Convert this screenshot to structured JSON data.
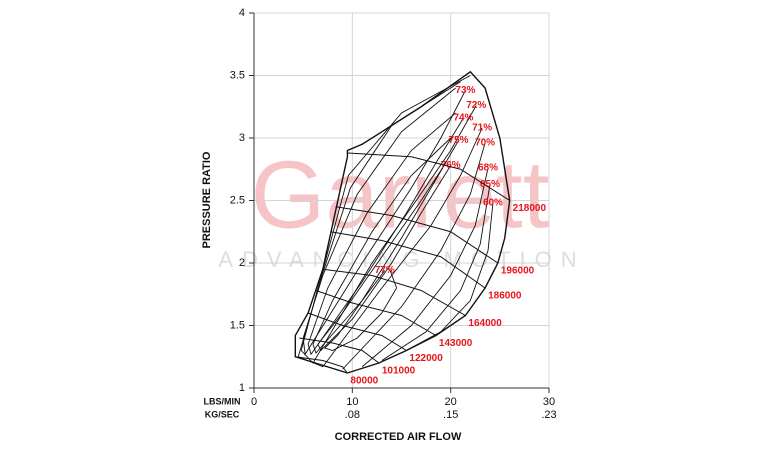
{
  "chart_data": {
    "type": "compressor_map",
    "watermark": {
      "title": "Garrett",
      "subtitle": "ADVANCING MOTION"
    },
    "ylabel": "PRESSURE RATIO",
    "xlabel": "CORRECTED AIR FLOW",
    "xunit": "LBS/MIN",
    "x2unit": "KG/SEC",
    "xlim": [
      0,
      30
    ],
    "xticks": [
      0,
      10,
      20,
      30
    ],
    "x2lim": [
      0,
      0.2268
    ],
    "x2ticks": [
      {
        "value": 0.0756,
        "label": ".08"
      },
      {
        "value": 0.1512,
        "label": ".15"
      },
      {
        "value": 0.2268,
        "label": ".23"
      }
    ],
    "ylim": [
      1,
      4
    ],
    "yticks": [
      1,
      1.5,
      2,
      2.5,
      3,
      3.5,
      4
    ],
    "grid": true,
    "line_color": "#111111",
    "label_color": "#e8141b",
    "outline": [
      {
        "x": [
          9.5,
          4.2,
          4.2,
          5.5,
          7,
          9.5,
          9.5,
          11,
          17,
          22,
          23.5,
          25,
          26,
          25.5,
          24.8,
          23.5,
          21.5,
          18.5,
          15.5,
          12.7,
          9.5
        ],
        "values": [
          1.12,
          1.25,
          1.42,
          1.6,
          1.95,
          2.85,
          2.9,
          2.95,
          3.25,
          3.53,
          3.4,
          3.0,
          2.5,
          2.2,
          2.0,
          1.8,
          1.58,
          1.42,
          1.3,
          1.2,
          1.12
        ]
      }
    ],
    "speed_lines": [
      {
        "name": "80000",
        "x": [
          4.2,
          7,
          9,
          9.5
        ],
        "values": [
          1.25,
          1.22,
          1.17,
          1.12
        ]
      },
      {
        "name": "101000",
        "x": [
          4.6,
          8,
          11,
          12.7
        ],
        "values": [
          1.4,
          1.36,
          1.3,
          1.2
        ]
      },
      {
        "name": "122000",
        "x": [
          5.5,
          9,
          13,
          15.5
        ],
        "values": [
          1.6,
          1.5,
          1.42,
          1.3
        ]
      },
      {
        "name": "143000",
        "x": [
          6.3,
          10,
          15,
          18.5
        ],
        "values": [
          1.78,
          1.68,
          1.58,
          1.42
        ]
      },
      {
        "name": "164000",
        "x": [
          7,
          12,
          17,
          21.5
        ],
        "values": [
          1.95,
          1.9,
          1.78,
          1.58
        ]
      },
      {
        "name": "186000",
        "x": [
          7.8,
          13,
          19,
          23.5
        ],
        "values": [
          2.25,
          2.18,
          2.05,
          1.8
        ]
      },
      {
        "name": "196000",
        "x": [
          8.3,
          14,
          20,
          24.8
        ],
        "values": [
          2.45,
          2.38,
          2.25,
          2.0
        ]
      },
      {
        "name": "218000",
        "x": [
          9.5,
          16,
          21,
          26
        ],
        "values": [
          2.88,
          2.85,
          2.75,
          2.5
        ]
      }
    ],
    "efficiency_islands": [
      {
        "name": "73%",
        "x": [
          21.5,
          19,
          16,
          11,
          5.2,
          5,
          7,
          10.5,
          15,
          20.5
        ],
        "values": [
          3.38,
          3.0,
          2.6,
          2.0,
          1.27,
          1.4,
          1.9,
          2.55,
          3.05,
          3.4
        ]
      },
      {
        "name": "72%",
        "x": [
          22.6,
          20,
          16.5,
          12,
          6,
          4.8,
          6.5,
          9.8,
          14,
          21
        ],
        "values": [
          3.26,
          2.9,
          2.5,
          2.0,
          1.2,
          1.3,
          1.8,
          2.6,
          3.1,
          3.45
        ]
      },
      {
        "name": "74%",
        "x": [
          21.3,
          18.5,
          15.5,
          11,
          5.8,
          5.5,
          7.5,
          11.5,
          16,
          20.5
        ],
        "values": [
          3.16,
          2.8,
          2.4,
          1.85,
          1.27,
          1.35,
          1.8,
          2.4,
          2.9,
          3.2
        ]
      },
      {
        "name": "71%",
        "x": [
          23.2,
          21,
          18,
          13,
          7,
          4.5,
          6,
          9.6,
          15,
          22
        ],
        "values": [
          3.08,
          2.7,
          2.3,
          1.8,
          1.17,
          1.25,
          1.65,
          2.7,
          3.2,
          3.5
        ]
      },
      {
        "name": "75%",
        "x": [
          20.8,
          18,
          15,
          11,
          6.3,
          6,
          8,
          12,
          16,
          20
        ],
        "values": [
          2.98,
          2.6,
          2.2,
          1.7,
          1.28,
          1.35,
          1.7,
          2.25,
          2.7,
          3.0
        ]
      },
      {
        "name": "70%",
        "x": [
          23.5,
          22,
          19,
          15,
          9
        ],
        "values": [
          2.96,
          2.55,
          2.1,
          1.65,
          1.15
        ]
      },
      {
        "name": "76%",
        "x": [
          20,
          17,
          14,
          10,
          6.8,
          6.5,
          9,
          13,
          17,
          19.5
        ],
        "values": [
          2.78,
          2.4,
          2.0,
          1.55,
          1.3,
          1.35,
          1.6,
          2.05,
          2.5,
          2.8
        ]
      },
      {
        "name": "68%",
        "x": [
          23.8,
          22.5,
          20,
          16,
          11
        ],
        "values": [
          2.76,
          2.3,
          1.9,
          1.5,
          1.17
        ]
      },
      {
        "name": "65%",
        "x": [
          24,
          23,
          21,
          17.5,
          13
        ],
        "values": [
          2.63,
          2.15,
          1.78,
          1.45,
          1.22
        ]
      },
      {
        "name": "60%",
        "x": [
          24.3,
          23.8,
          22,
          19,
          15
        ],
        "values": [
          2.48,
          2.1,
          1.7,
          1.45,
          1.28
        ]
      },
      {
        "name": "77%",
        "x": [
          13.3,
          11,
          8.5,
          7.2,
          8,
          10.5,
          13,
          14.5,
          13.8
        ],
        "values": [
          1.94,
          1.7,
          1.42,
          1.32,
          1.3,
          1.4,
          1.6,
          1.8,
          1.95
        ]
      }
    ]
  }
}
